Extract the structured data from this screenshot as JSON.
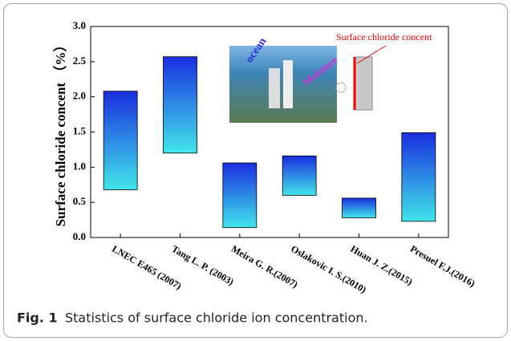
{
  "chart_data": {
    "type": "floating-bar",
    "ylabel": "Surface chloride concent （%）",
    "categories": [
      "LNEC E465 (2007)",
      "Tang L. P.   (2003)",
      "Meira G. R.(2007)",
      "Oslakovic I. S.(2010)",
      "Huan J. Z.(2015)",
      "Presuel F.J.(2016)"
    ],
    "low": [
      0.68,
      1.2,
      0.14,
      0.6,
      0.28,
      0.23
    ],
    "high": [
      2.08,
      2.57,
      1.06,
      1.16,
      0.56,
      1.49
    ],
    "ylim": [
      0,
      3
    ],
    "yticks": [
      {
        "value": 0,
        "label": "0.0"
      },
      0.5,
      {
        "value": 1,
        "label": "1.0"
      },
      1.5,
      {
        "value": 2,
        "label": "2.0"
      },
      2.5,
      {
        "value": 3,
        "label": "3.0"
      }
    ],
    "annotations": [
      "ocean",
      "Moisture",
      "Surface chloride concent"
    ],
    "caption_label": "Fig. 1",
    "caption": "Statistics of surface chloride ion concentration."
  }
}
